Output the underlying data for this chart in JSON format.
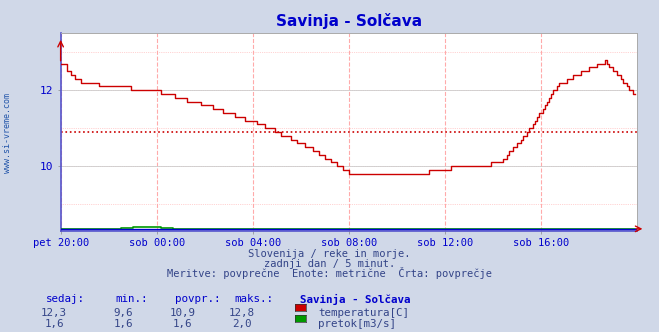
{
  "title": "Savinja - Solčava",
  "title_color": "#0000cc",
  "bg_color": "#d0d8e8",
  "plot_bg_color": "#ffffff",
  "watermark": "www.si-vreme.com",
  "subtitle_lines": [
    "Slovenija / reke in morje.",
    "zadnji dan / 5 minut.",
    "Meritve: povprečne  Enote: metrične  Črta: povprečje"
  ],
  "xlabel_ticks": [
    "pet 20:00",
    "sob 00:00",
    "sob 04:00",
    "sob 08:00",
    "sob 12:00",
    "sob 16:00"
  ],
  "ytick_labels": [
    "10",
    "12"
  ],
  "ytick_vals": [
    10,
    12
  ],
  "ylim": [
    8.3,
    13.5
  ],
  "xlim_max": 288,
  "avg_line_value_temp": 10.9,
  "avg_line_color": "#cc0000",
  "temp_color": "#cc0000",
  "flow_color": "#009900",
  "height_color": "#0000cc",
  "vgrid_color": "#ffaaaa",
  "hgrid_color": "#cccccc",
  "hgrid_pink": "#ffaaaa",
  "table_headers": [
    "sedaj:",
    "min.:",
    "povpr.:",
    "maks.:",
    "Savinja - Solčava"
  ],
  "table_row1_vals": [
    "12,3",
    "9,6",
    "10,9",
    "12,8"
  ],
  "table_row1_label": "temperatura[C]",
  "table_row2_vals": [
    "1,6",
    "1,6",
    "1,6",
    "2,0"
  ],
  "table_row2_label": "pretok[m3/s]",
  "temp_color_legend": "#cc0000",
  "flow_color_legend": "#009900",
  "axis_label_color": "#0000cc",
  "table_color": "#0000cc",
  "text_color": "#334488",
  "n_points": 288,
  "tick_x_positions": [
    0,
    48,
    96,
    144,
    192,
    240
  ]
}
